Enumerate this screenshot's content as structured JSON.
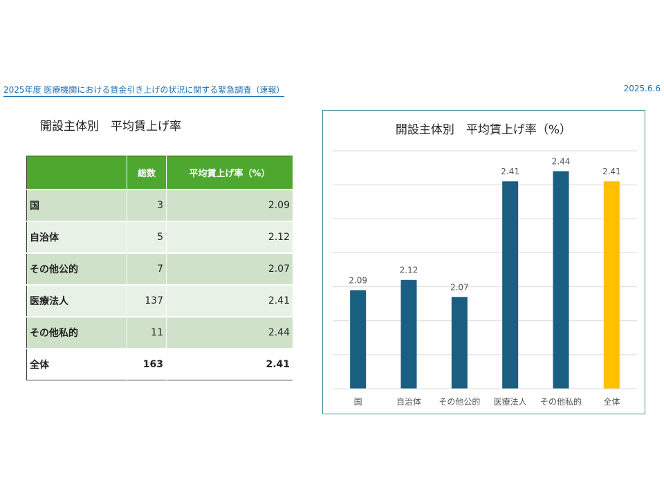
{
  "header": {
    "survey_title": "2025年度 医療機関における賃金引き上げの状況に関する緊急調査（速報）",
    "date": "2025.6.6"
  },
  "table": {
    "title": "開設主体別　平均賃上げ率",
    "columns": [
      "",
      "総数",
      "平均賃上げ率（%）"
    ],
    "rows": [
      {
        "name": "国",
        "count": "3",
        "rate": "2.09"
      },
      {
        "name": "自治体",
        "count": "5",
        "rate": "2.12"
      },
      {
        "name": "その他公的",
        "count": "7",
        "rate": "2.07"
      },
      {
        "name": "医療法人",
        "count": "137",
        "rate": "2.41"
      },
      {
        "name": "その他私的",
        "count": "11",
        "rate": "2.44"
      },
      {
        "name": "全体",
        "count": "163",
        "rate": "2.41"
      }
    ]
  },
  "chart_data": {
    "type": "bar",
    "title": "開設主体別　平均賃上げ率（%）",
    "categories": [
      "国",
      "自治体",
      "その他公的",
      "医療法人",
      "その他私的",
      "全体"
    ],
    "values": [
      2.09,
      2.12,
      2.07,
      2.41,
      2.44,
      2.41
    ],
    "data_labels": [
      "2.09",
      "2.12",
      "2.07",
      "2.41",
      "2.44",
      "2.41"
    ],
    "ylim": [
      1.8,
      2.5
    ],
    "y_step": 0.1,
    "grid": true,
    "y_tick_labels_visible": false,
    "bar_colors": [
      "#1a5e80",
      "#1a5e80",
      "#1a5e80",
      "#1a5e80",
      "#1a5e80",
      "#ffc000"
    ],
    "xlabel": "",
    "ylabel": ""
  }
}
